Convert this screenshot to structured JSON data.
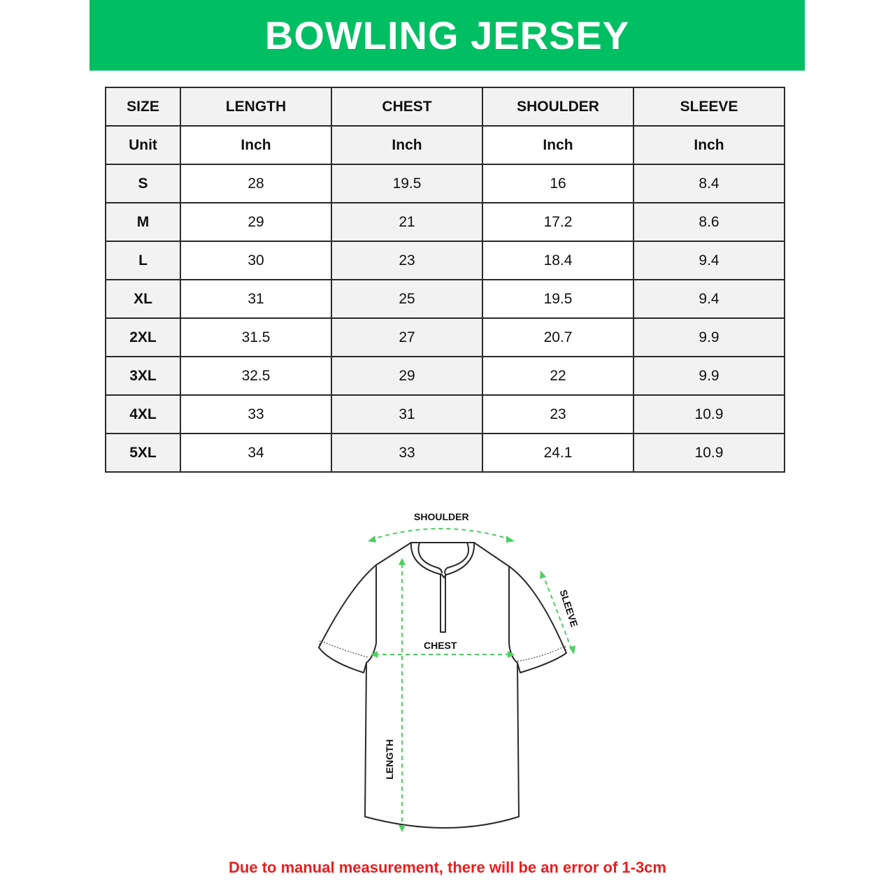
{
  "title": "BOWLING JERSEY",
  "table": {
    "headers": [
      "SIZE",
      "LENGTH",
      "CHEST",
      "SHOULDER",
      "SLEEVE"
    ],
    "units": [
      "Unit",
      "Inch",
      "Inch",
      "Inch",
      "Inch"
    ],
    "rows": [
      [
        "S",
        "28",
        "19.5",
        "16",
        "8.4"
      ],
      [
        "M",
        "29",
        "21",
        "17.2",
        "8.6"
      ],
      [
        "L",
        "30",
        "23",
        "18.4",
        "9.4"
      ],
      [
        "XL",
        "31",
        "25",
        "19.5",
        "9.4"
      ],
      [
        "2XL",
        "31.5",
        "27",
        "20.7",
        "9.9"
      ],
      [
        "3XL",
        "32.5",
        "29",
        "22",
        "9.9"
      ],
      [
        "4XL",
        "33",
        "31",
        "23",
        "10.9"
      ],
      [
        "5XL",
        "34",
        "33",
        "24.1",
        "10.9"
      ]
    ]
  },
  "diagram": {
    "shoulder_label": "SHOULDER",
    "chest_label": "CHEST",
    "sleeve_label": "SLEEVE",
    "length_label": "LENGTH"
  },
  "note": "Due to manual measurement, there will be an error of 1-3cm",
  "colors": {
    "banner": "#00bf63",
    "arrows": "#4ccf5f",
    "note": "#ee1c1c"
  }
}
